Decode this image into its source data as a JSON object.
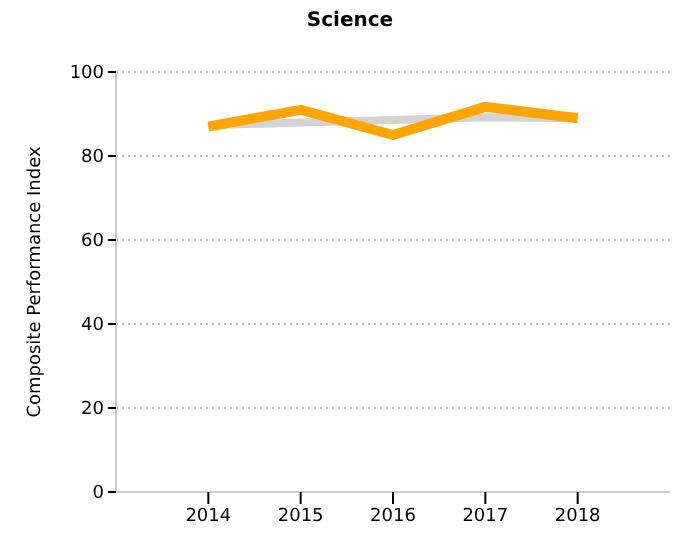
{
  "chart_data": {
    "type": "line",
    "title": "Science",
    "ylabel": "Composite Performance Index",
    "x": [
      2014,
      2015,
      2016,
      2017,
      2018
    ],
    "series": [
      {
        "color": "#d3d3d3",
        "values": [
          87.3,
          88,
          88.6,
          89.2,
          89
        ]
      },
      {
        "color": "#ffa500",
        "values": [
          87,
          91,
          85,
          91.7,
          89
        ]
      }
    ],
    "xlim": [
      2013,
      2019
    ],
    "xticks": [
      2014,
      2015,
      2016,
      2017,
      2018
    ],
    "ylim": [
      0,
      100
    ],
    "yticks": [
      0,
      20,
      40,
      60,
      80,
      100
    ],
    "grid": "y",
    "legend": false,
    "marker": "none",
    "line_style": "solid"
  }
}
